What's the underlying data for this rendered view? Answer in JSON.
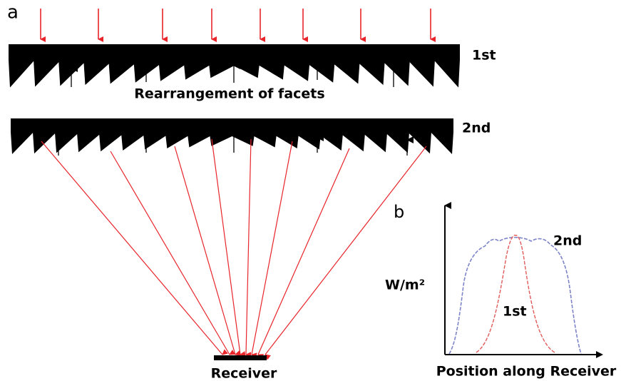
{
  "panels": {
    "a": {
      "label": "a",
      "lens_1_label": "1st",
      "lens_2_label": "2nd",
      "annotation": "Rearrangement of facets",
      "receiver_label": "Receiver"
    },
    "b": {
      "label": "b",
      "y_axis_label": "W/m²",
      "x_axis_label": "Position along Receiver",
      "curve_2_label": "2nd",
      "curve_1_label": "1st"
    }
  }
}
